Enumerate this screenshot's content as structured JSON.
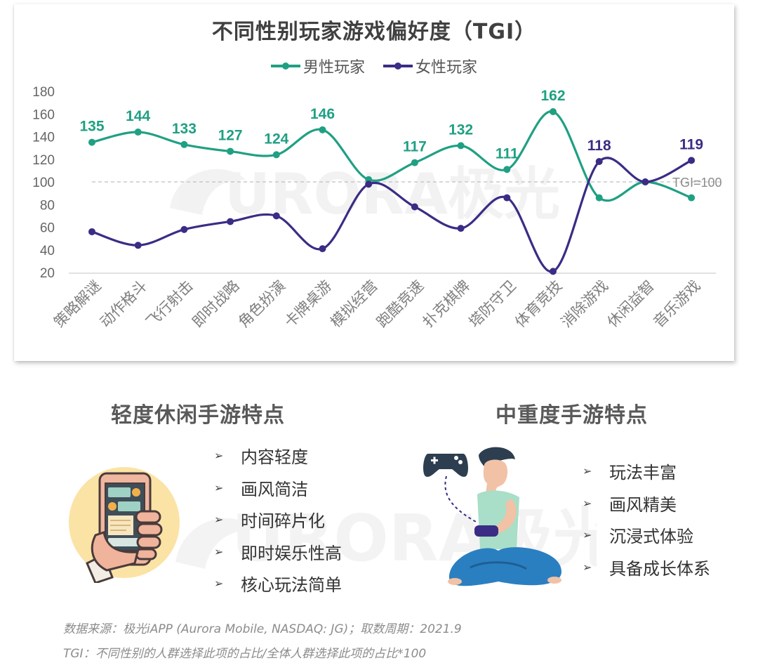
{
  "chart_data": {
    "type": "line",
    "title": "不同性别玩家游戏偏好度（TGI）",
    "categories": [
      "策略解谜",
      "动作格斗",
      "飞行射击",
      "即时战略",
      "角色扮演",
      "卡牌桌游",
      "模拟经营",
      "跑酷竞速",
      "扑克棋牌",
      "塔防守卫",
      "体育竞技",
      "消除游戏",
      "休闲益智",
      "音乐游戏"
    ],
    "series": [
      {
        "name": "男性玩家",
        "color": "#1FA083",
        "values": [
          135,
          144,
          133,
          127,
          124,
          146,
          102,
          117,
          132,
          111,
          162,
          86,
          100,
          86
        ],
        "labels": [
          "135",
          "144",
          "133",
          "127",
          "124",
          "146",
          "",
          "117",
          "132",
          "111",
          "162",
          "",
          "",
          ""
        ]
      },
      {
        "name": "女性玩家",
        "color": "#3B2C85",
        "values": [
          56,
          44,
          58,
          65,
          70,
          41,
          98,
          78,
          59,
          86,
          21,
          118,
          100,
          119
        ],
        "labels": [
          "",
          "",
          "",
          "",
          "",
          "",
          "",
          "",
          "",
          "",
          "",
          "118",
          "",
          "119"
        ]
      }
    ],
    "ylim": [
      20,
      180
    ],
    "yticks": [
      180,
      160,
      140,
      120,
      100,
      80,
      60,
      40,
      20
    ],
    "reference_line": {
      "value": 100,
      "label": "TGI=100"
    },
    "legend_position": "top-center",
    "grid": false
  },
  "light": {
    "title": "轻度休闲手游特点",
    "items": [
      "内容轻度",
      "画风简洁",
      "时间碎片化",
      "即时娱乐性高",
      "核心玩法简单"
    ]
  },
  "heavy": {
    "title": "中重度手游特点",
    "items": [
      "玩法丰富",
      "画风精美",
      "沉浸式体验",
      "具备成长体系"
    ]
  },
  "bullet_glyph": "➢",
  "watermark_text": "URORA极光",
  "footnotes": {
    "source": "数据来源：极光iAPP (Aurora Mobile, NASDAQ: JG)；取数周期：2021.9",
    "tgi": "TGI：不同性别的人群选择此项的占比/全体人群选择此项的占比*100"
  },
  "icons": [
    "smartphone-hand-icon",
    "gamer-icon",
    "gamepad-icon"
  ]
}
